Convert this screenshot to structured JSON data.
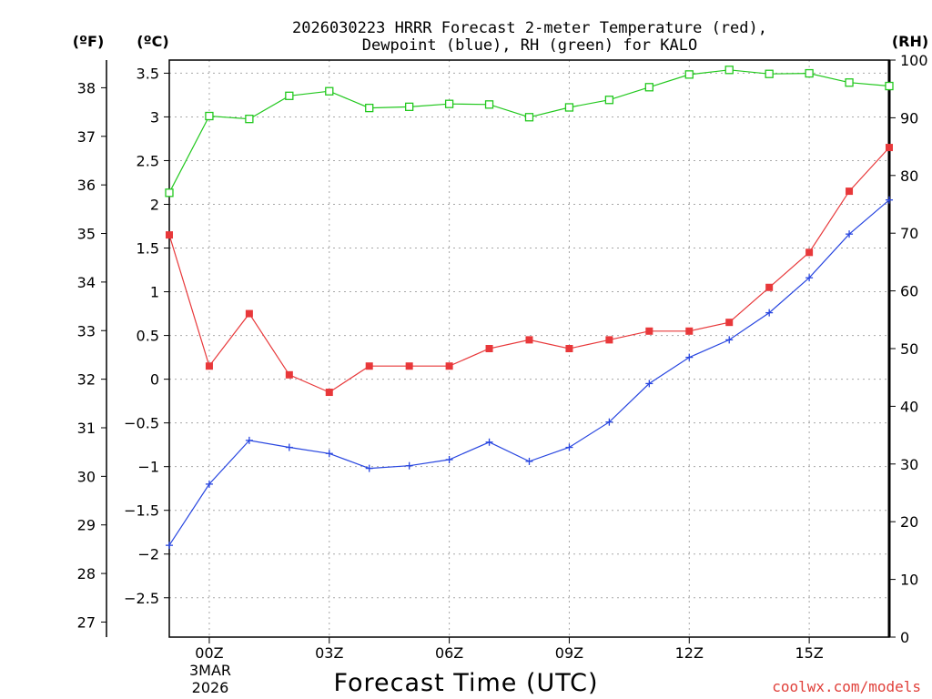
{
  "chart_data": {
    "type": "line",
    "title_lines": [
      "2026030223 HRRR Forecast 2-meter Temperature (red),",
      "Dewpoint (blue), RH (green) for KALO"
    ],
    "units": {
      "fahrenheit": "(ºF)",
      "celsius": "(ºC)",
      "rh": "(RH)"
    },
    "xlabel": "Forecast Time (UTC)",
    "x_range": [
      -1,
      17
    ],
    "x_ticks": [
      {
        "x": 0,
        "label": "00Z"
      },
      {
        "x": 3,
        "label": "03Z"
      },
      {
        "x": 6,
        "label": "06Z"
      },
      {
        "x": 9,
        "label": "09Z"
      },
      {
        "x": 12,
        "label": "12Z"
      },
      {
        "x": 15,
        "label": "15Z"
      }
    ],
    "date_label": [
      "3MAR",
      "2026"
    ],
    "celsius_axis": {
      "range": [
        -2.95,
        3.65
      ],
      "ticks": [
        -2.5,
        -2,
        -1.5,
        -1,
        -0.5,
        0,
        0.5,
        1,
        1.5,
        2,
        2.5,
        3,
        3.5
      ],
      "tick_labels": [
        "−2.5",
        "−2",
        "−1.5",
        "−1",
        "−0.5",
        "0",
        "0.5",
        "1",
        "1.5",
        "2",
        "2.5",
        "3",
        "3.5"
      ]
    },
    "fahrenheit_axis": {
      "ticks": [
        27,
        28,
        29,
        30,
        31,
        32,
        33,
        34,
        35,
        36,
        37,
        38
      ],
      "tick_labels": [
        "27",
        "28",
        "29",
        "30",
        "31",
        "32",
        "33",
        "34",
        "35",
        "36",
        "37",
        "38"
      ]
    },
    "rh_axis": {
      "range": [
        0,
        100
      ],
      "ticks": [
        0,
        10,
        20,
        30,
        40,
        50,
        60,
        70,
        80,
        90,
        100
      ],
      "tick_labels": [
        "0",
        "10",
        "20",
        "30",
        "40",
        "50",
        "60",
        "70",
        "80",
        "90",
        "100"
      ]
    },
    "x": [
      -1,
      0,
      1,
      2,
      3,
      4,
      5,
      6,
      7,
      8,
      9,
      10,
      11,
      12,
      13,
      14,
      15,
      16,
      17
    ],
    "series": [
      {
        "name": "2-meter Temperature",
        "color": "#e8383a",
        "marker": "filled-square",
        "axis": "celsius",
        "values": [
          1.65,
          0.15,
          0.75,
          0.05,
          -0.15,
          0.15,
          0.15,
          0.15,
          0.35,
          0.45,
          0.35,
          0.45,
          0.55,
          0.55,
          0.65,
          1.05,
          1.45,
          2.15,
          2.65
        ]
      },
      {
        "name": "Dewpoint",
        "color": "#2846e0",
        "marker": "plus",
        "axis": "celsius",
        "values": [
          -1.9,
          -1.2,
          -0.7,
          -0.78,
          -0.85,
          -1.02,
          -0.99,
          -0.92,
          -0.72,
          -0.94,
          -0.78,
          -0.49,
          -0.05,
          0.25,
          0.45,
          0.76,
          1.16,
          1.66,
          2.05
        ]
      },
      {
        "name": "RH",
        "color": "#22c81e",
        "marker": "open-square",
        "axis": "rh",
        "values": [
          77,
          90.3,
          89.8,
          93.8,
          94.6,
          91.7,
          91.9,
          92.4,
          92.3,
          90.1,
          91.8,
          93.1,
          95.3,
          97.5,
          98.3,
          97.6,
          97.7,
          96.1,
          95.5
        ]
      }
    ],
    "grid": true,
    "credit": "coolwx.com/models"
  }
}
